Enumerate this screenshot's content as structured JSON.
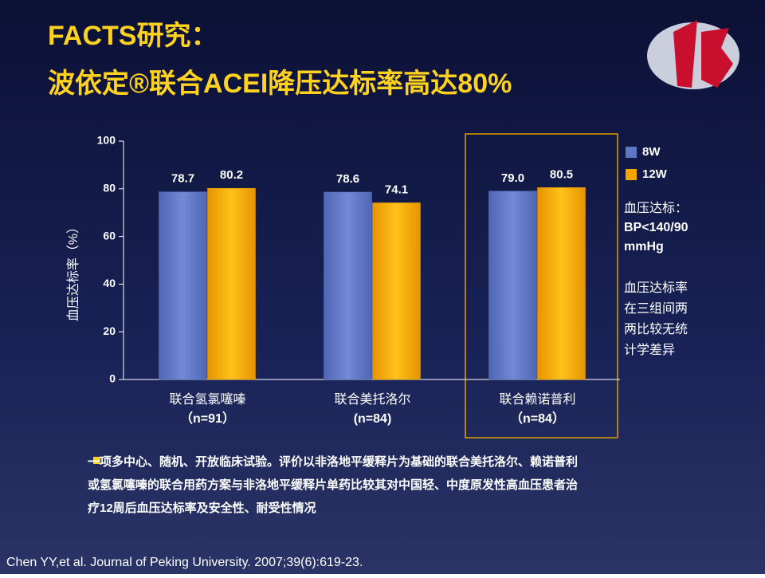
{
  "slide": {
    "title_lines": [
      "FACTS研究：",
      "波依定®联合ACEI降压达标率高达80%"
    ],
    "notes_a": [
      "血压达标：",
      "BP<140/90",
      "mmHg"
    ],
    "notes_b": [
      "血压达标率",
      "在三组间两",
      "两比较无统",
      "计学差异"
    ],
    "bullet_lines": [
      "一项多中心、随机、开放临床试验。评价以非洛地平缓释片为基础的联合美托洛尔、赖诺普利",
      "或氢氯噻嗪的联合用药方案与非洛地平缓释片单药比较其对中国轻、中度原发性高血压患者治",
      "疗12周后血压达标率及安全性、耐受性情况"
    ],
    "citation": "Chen YY,et al. Journal of  Peking University. 2007;39(6):619-23."
  },
  "chart_data": {
    "type": "bar",
    "y_label": "血压达标率（%）",
    "categories": [
      "联合氢氯噻嗪",
      "联合美托洛尔",
      "联合赖诺普利"
    ],
    "category_notes": [
      "（n=91）",
      "(n=84)",
      "（n=84）"
    ],
    "series": [
      {
        "name": "8W",
        "color": "#5d76c6",
        "values": [
          78.7,
          78.6,
          79.0
        ],
        "value_labels": [
          "78.7",
          "78.6",
          "79.0"
        ]
      },
      {
        "name": "12W",
        "color": "#f5a400",
        "values": [
          80.2,
          74.1,
          80.5
        ],
        "value_labels": [
          "80.2",
          "74.1",
          "80.5"
        ]
      }
    ],
    "ylim": [
      0,
      100
    ],
    "yticks": [
      0,
      20,
      40,
      60,
      80,
      100
    ],
    "highlight_category": 2
  }
}
